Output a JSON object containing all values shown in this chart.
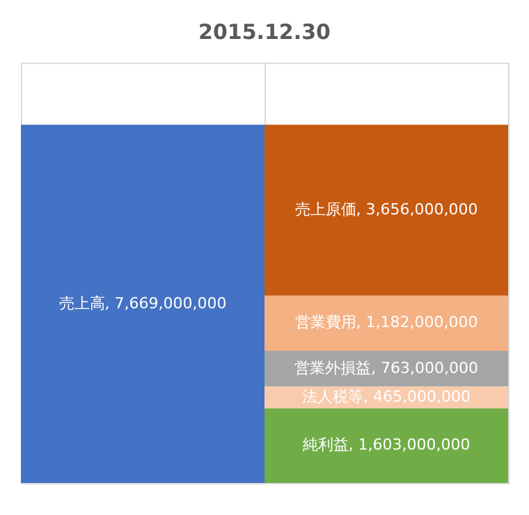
{
  "chart_data": {
    "type": "bar",
    "stacked": true,
    "title": "2015.12.30",
    "categories": [
      null,
      null
    ],
    "series": [
      {
        "color": "#4472c4",
        "values": [
          7669000000,
          null
        ],
        "value_labels": [
          "売上高, 7,669,000,000",
          null
        ]
      },
      {
        "color": "#70ad47",
        "values": [
          null,
          1603000000
        ],
        "value_labels": [
          null,
          "純利益, 1,603,000,000"
        ]
      },
      {
        "color": "#f8cbad",
        "values": [
          null,
          465000000
        ],
        "value_labels": [
          null,
          "法人税等, 465,000,000"
        ]
      },
      {
        "color": "#a5a5a5",
        "values": [
          null,
          763000000
        ],
        "value_labels": [
          null,
          "営業外損益, 763,000,000"
        ]
      },
      {
        "color": "#f4b183",
        "values": [
          null,
          1182000000
        ],
        "value_labels": [
          null,
          "営業費用, 1,182,000,000"
        ]
      },
      {
        "color": "#c55a11",
        "values": [
          null,
          3656000000
        ],
        "value_labels": [
          null,
          "売上原価, 3,656,000,000"
        ]
      }
    ],
    "ylim": [
      0,
      9000000000
    ],
    "grid": "x",
    "tick_labels": false
  }
}
